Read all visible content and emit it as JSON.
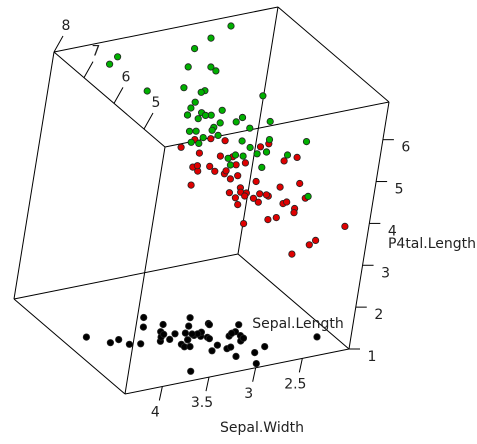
{
  "chart_data": {
    "type": "scatter",
    "dimension": "3d",
    "title": "",
    "xlabel": "Sepal.Length",
    "ylabel": "Sepal.Width",
    "zlabel": "Petal.Length",
    "xlabel_display": "Sepal.Length",
    "ylabel_display": "Sepal.Width",
    "zlabel_display": "P4tal.Length",
    "x_ticks": [
      "5",
      "6",
      "7",
      "8"
    ],
    "y_ticks": [
      "2.5",
      "3",
      "3.5",
      "4"
    ],
    "z_ticks": [
      "1",
      "2",
      "3",
      "4",
      "5",
      "6"
    ],
    "xlim": [
      4.3,
      8.0
    ],
    "ylim": [
      2.0,
      4.4
    ],
    "zlim": [
      1.0,
      6.9
    ],
    "grid": false,
    "box": true,
    "colors": {
      "setosa": "#000000",
      "versicolor": "#df0000",
      "virginica": "#00b000"
    },
    "series": [
      {
        "color_key": "setosa",
        "x": [
          5.1,
          4.9,
          4.7,
          4.6,
          5.0,
          5.4,
          4.6,
          5.0,
          4.4,
          4.9,
          5.4,
          4.8,
          4.8,
          4.3,
          5.8,
          5.7,
          5.4,
          5.1,
          5.7,
          5.1,
          5.4,
          5.1,
          4.6,
          5.1,
          4.8,
          5.0,
          5.0,
          5.2,
          5.2,
          4.7,
          4.8,
          5.4,
          5.2,
          5.5,
          4.9,
          5.0,
          5.5,
          4.9,
          4.4,
          5.1,
          5.0,
          4.5,
          4.4,
          5.0,
          5.1,
          4.8,
          5.1,
          4.6,
          5.3,
          5.0
        ],
        "y": [
          3.5,
          3.0,
          3.2,
          3.1,
          3.6,
          3.9,
          3.4,
          3.4,
          2.9,
          3.1,
          3.7,
          3.4,
          3.0,
          3.0,
          4.0,
          4.4,
          3.9,
          3.5,
          3.8,
          3.8,
          3.4,
          3.7,
          3.6,
          3.3,
          3.4,
          3.0,
          3.4,
          3.5,
          3.4,
          3.2,
          3.1,
          3.4,
          4.1,
          4.2,
          3.1,
          3.2,
          3.5,
          3.6,
          3.0,
          3.4,
          3.5,
          2.3,
          3.2,
          3.5,
          3.8,
          3.0,
          3.8,
          3.2,
          3.7,
          3.3
        ],
        "z": [
          1.4,
          1.4,
          1.3,
          1.5,
          1.4,
          1.7,
          1.4,
          1.5,
          1.4,
          1.5,
          1.5,
          1.6,
          1.4,
          1.1,
          1.2,
          1.5,
          1.3,
          1.4,
          1.7,
          1.5,
          1.7,
          1.5,
          1.0,
          1.7,
          1.9,
          1.6,
          1.6,
          1.5,
          1.4,
          1.6,
          1.6,
          1.5,
          1.5,
          1.4,
          1.5,
          1.2,
          1.3,
          1.4,
          1.3,
          1.5,
          1.3,
          1.3,
          1.3,
          1.6,
          1.9,
          1.4,
          1.6,
          1.4,
          1.5,
          1.4
        ]
      },
      {
        "color_key": "versicolor",
        "x": [
          7.0,
          6.4,
          6.9,
          5.5,
          6.5,
          5.7,
          6.3,
          4.9,
          6.6,
          5.2,
          5.0,
          5.9,
          6.0,
          6.1,
          5.6,
          6.7,
          5.6,
          5.8,
          6.2,
          5.6,
          5.9,
          6.1,
          6.3,
          6.1,
          6.4,
          6.6,
          6.8,
          6.7,
          6.0,
          5.7,
          5.5,
          5.5,
          5.8,
          6.0,
          5.4,
          6.0,
          6.7,
          6.3,
          5.6,
          5.5,
          5.5,
          6.1,
          5.8,
          5.0,
          5.6,
          5.7,
          5.7,
          6.2,
          5.1,
          5.7
        ],
        "y": [
          3.2,
          3.2,
          3.1,
          2.3,
          2.8,
          2.8,
          3.3,
          2.4,
          2.9,
          2.7,
          2.0,
          3.0,
          2.2,
          2.9,
          2.9,
          3.1,
          3.0,
          2.7,
          2.2,
          2.5,
          3.2,
          2.8,
          2.5,
          2.8,
          2.9,
          3.0,
          2.8,
          3.0,
          2.9,
          2.6,
          2.4,
          2.4,
          2.7,
          2.7,
          3.0,
          3.4,
          3.1,
          2.3,
          3.0,
          2.5,
          2.6,
          3.0,
          2.6,
          2.3,
          2.7,
          3.0,
          2.9,
          2.9,
          2.5,
          2.8
        ],
        "z": [
          4.7,
          4.5,
          4.9,
          4.0,
          4.6,
          4.5,
          4.7,
          3.3,
          4.6,
          3.9,
          3.5,
          4.2,
          4.0,
          4.7,
          3.6,
          4.4,
          4.5,
          4.1,
          4.5,
          3.9,
          4.8,
          4.0,
          4.9,
          4.7,
          4.3,
          4.4,
          4.8,
          5.0,
          4.5,
          3.5,
          3.8,
          3.7,
          3.9,
          5.1,
          4.5,
          4.5,
          4.7,
          4.4,
          4.1,
          4.0,
          4.4,
          4.6,
          4.0,
          3.3,
          4.2,
          4.2,
          4.2,
          4.3,
          3.0,
          4.1
        ]
      },
      {
        "color_key": "virginica",
        "x": [
          6.3,
          5.8,
          7.1,
          6.3,
          6.5,
          7.6,
          4.9,
          7.3,
          6.7,
          7.2,
          6.5,
          6.4,
          6.8,
          5.7,
          5.8,
          6.4,
          6.5,
          7.7,
          7.7,
          6.0,
          6.9,
          5.6,
          7.7,
          6.3,
          6.7,
          7.2,
          6.2,
          6.1,
          6.4,
          7.2,
          7.4,
          7.9,
          6.4,
          6.3,
          6.1,
          7.7,
          6.3,
          6.4,
          6.0,
          6.9,
          6.7,
          6.9,
          5.8,
          6.8,
          6.7,
          6.7,
          6.3,
          6.5,
          6.2,
          5.9
        ],
        "y": [
          3.3,
          2.7,
          3.0,
          2.9,
          3.0,
          3.0,
          2.5,
          2.9,
          2.5,
          3.6,
          3.2,
          2.7,
          3.0,
          2.5,
          2.8,
          3.2,
          3.0,
          3.8,
          2.6,
          2.2,
          3.2,
          2.8,
          2.8,
          2.7,
          3.3,
          3.2,
          2.8,
          3.0,
          2.8,
          3.0,
          2.8,
          3.8,
          2.8,
          2.8,
          2.6,
          3.0,
          3.4,
          3.1,
          3.0,
          3.1,
          3.1,
          3.1,
          2.7,
          3.2,
          3.3,
          3.0,
          2.5,
          3.0,
          3.4,
          3.0
        ],
        "z": [
          6.0,
          5.1,
          5.9,
          5.6,
          5.8,
          6.6,
          4.5,
          6.3,
          5.8,
          6.1,
          5.1,
          5.3,
          5.5,
          5.0,
          5.1,
          5.3,
          5.5,
          6.7,
          6.9,
          5.0,
          5.7,
          4.9,
          6.7,
          4.9,
          5.7,
          6.0,
          4.8,
          4.9,
          5.6,
          5.8,
          6.1,
          6.4,
          5.6,
          5.1,
          5.6,
          6.1,
          5.6,
          5.5,
          4.8,
          5.4,
          5.6,
          5.1,
          5.1,
          5.9,
          5.7,
          5.2,
          5.0,
          5.2,
          5.4,
          5.1
        ]
      }
    ]
  }
}
